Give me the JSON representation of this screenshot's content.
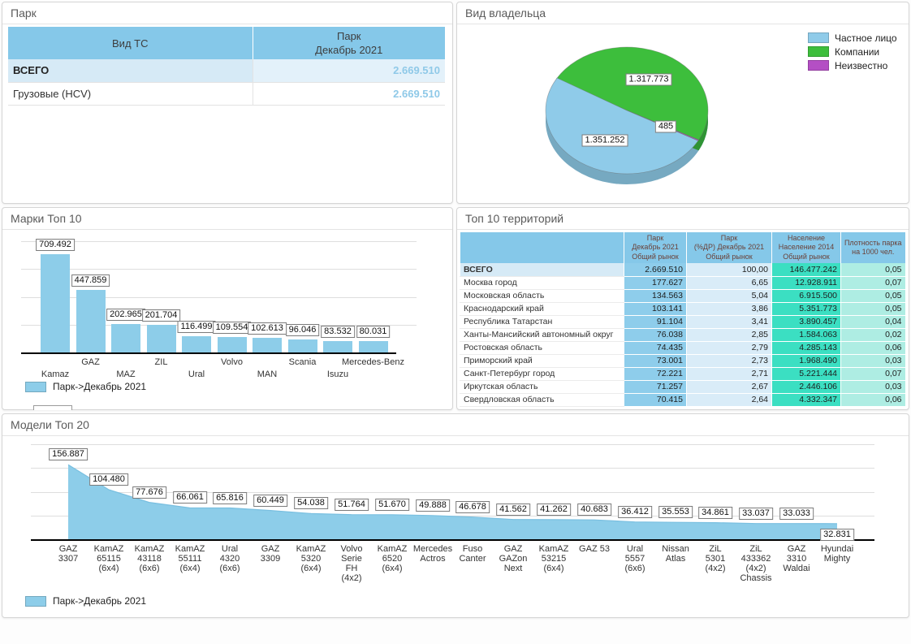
{
  "panels": {
    "park": {
      "title": "Парк"
    },
    "owner": {
      "title": "Вид владельца"
    },
    "brands": {
      "title": "Марки Топ 10"
    },
    "territories": {
      "title": "Топ 10 территорий"
    },
    "models": {
      "title": "Модели Топ 20"
    }
  },
  "park_table": {
    "columns": [
      "Вид ТС",
      "Парк\nДекабрь 2021"
    ],
    "rows": [
      {
        "name": "ВСЕГО",
        "value": "2.669.510",
        "emphasis": true
      },
      {
        "name": "Грузовые (HCV)",
        "value": "2.669.510",
        "emphasis": false
      }
    ]
  },
  "territories_table": {
    "columns": [
      "",
      "Парк\nДекабрь 2021\nОбщий рынок",
      "Парк\n(%ДР) Декабрь 2021\nОбщий рынок",
      "Население\nНаселение 2014\nОбщий рынок",
      "Плотность парка\nна 1000 чел."
    ],
    "rows": [
      [
        "ВСЕГО",
        "2.669.510",
        "100,00",
        "146.477.242",
        "0,05"
      ],
      [
        "Москва город",
        "177.627",
        "6,65",
        "12.928.911",
        "0,07"
      ],
      [
        "Московская область",
        "134.563",
        "5,04",
        "6.915.500",
        "0,05"
      ],
      [
        "Краснодарский край",
        "103.141",
        "3,86",
        "5.351.773",
        "0,05"
      ],
      [
        "Республика Татарстан",
        "91.104",
        "3,41",
        "3.890.457",
        "0,04"
      ],
      [
        "Ханты-Мансийский автономный округ",
        "76.038",
        "2,85",
        "1.584.063",
        "0,02"
      ],
      [
        "Ростовская область",
        "74.435",
        "2,79",
        "4.285.143",
        "0,06"
      ],
      [
        "Приморский край",
        "73.001",
        "2,73",
        "1.968.490",
        "0,03"
      ],
      [
        "Санкт-Петербург город",
        "72.221",
        "2,71",
        "5.221.444",
        "0,07"
      ],
      [
        "Иркутская область",
        "71.257",
        "2,67",
        "2.446.106",
        "0,03"
      ],
      [
        "Свердловская область",
        "70.415",
        "2,64",
        "4.332.347",
        "0,06"
      ]
    ]
  },
  "chart_data": [
    {
      "type": "pie",
      "title": "Вид владельца",
      "labels": [
        "Частное лицо",
        "Компании",
        "Неизвестно"
      ],
      "values": [
        1351252,
        1317773,
        485
      ],
      "colors": [
        "#8FCBE9",
        "#3DBE3C",
        "#B44FC4"
      ],
      "legend_position": "right",
      "style": "3d"
    },
    {
      "type": "bar",
      "title": "Марки Топ 10",
      "categories": [
        "Kamaz",
        "GAZ",
        "MAZ",
        "ZIL",
        "Ural",
        "Volvo",
        "MAN",
        "Scania",
        "Isuzu",
        "Mercedes-Benz"
      ],
      "values": [
        709492,
        447859,
        202965,
        201704,
        116499,
        109554,
        102613,
        96046,
        83532,
        80031
      ],
      "series_name": "Парк->Декабрь 2021",
      "ylim": [
        0,
        800000
      ],
      "gridlines": [
        200000,
        400000,
        600000,
        800000
      ],
      "color": "#8DCDE9",
      "legend_position": "bottom-left"
    },
    {
      "type": "area",
      "title": "Модели Топ 20",
      "categories": [
        "GAZ\n3307",
        "KamAZ\n65115\n(6x4)",
        "KamAZ\n43118\n(6x6)",
        "KamAZ\n55111\n(6x4)",
        "Ural\n4320\n(6x6)",
        "GAZ\n3309",
        "KamAZ\n5320\n(6x4)",
        "Volvo\nSerie\nFH\n(4x2)",
        "KamAZ\n6520\n(6x4)",
        "Mercedes\nActros",
        "Fuso\nCanter",
        "GAZ\nGAZon\nNext",
        "KamAZ\n53215\n(6x4)",
        "GAZ 53",
        "Ural\n5557\n(6x6)",
        "Nissan\nAtlas",
        "ZiL\n5301\n(4x2)",
        "ZiL\n433362\n(4x2)\nChassis",
        "GAZ\n3310\nWaldai",
        "Hyundai\nMighty"
      ],
      "values": [
        156887,
        104480,
        77676,
        66061,
        65816,
        60449,
        54038,
        51764,
        51670,
        49888,
        46678,
        41562,
        41262,
        40683,
        36412,
        35553,
        34861,
        33037,
        33033,
        32831
      ],
      "series_name": "Парк->Декабрь 2021",
      "ylim": [
        0,
        200000
      ],
      "gridlines": [
        50000,
        100000,
        150000,
        200000
      ],
      "color": "#8DCDE9",
      "legend_position": "bottom-left"
    }
  ],
  "colors": {
    "series_blue": "#8DCDE9",
    "pie_rim_blue": "#76A9C1",
    "pie_rim_green": "#2F9434",
    "table_header_blue": "#85C8E9",
    "col_park": "#8ECDEB",
    "col_pct": "#D9ECF8",
    "col_population": "#3BDFC2",
    "col_density": "#AEEDE3",
    "value_text_blue": "#8FC9E8",
    "highlight_row_blue": "#D6EAF6",
    "highlight_value_bg": "#E3F1FA"
  }
}
